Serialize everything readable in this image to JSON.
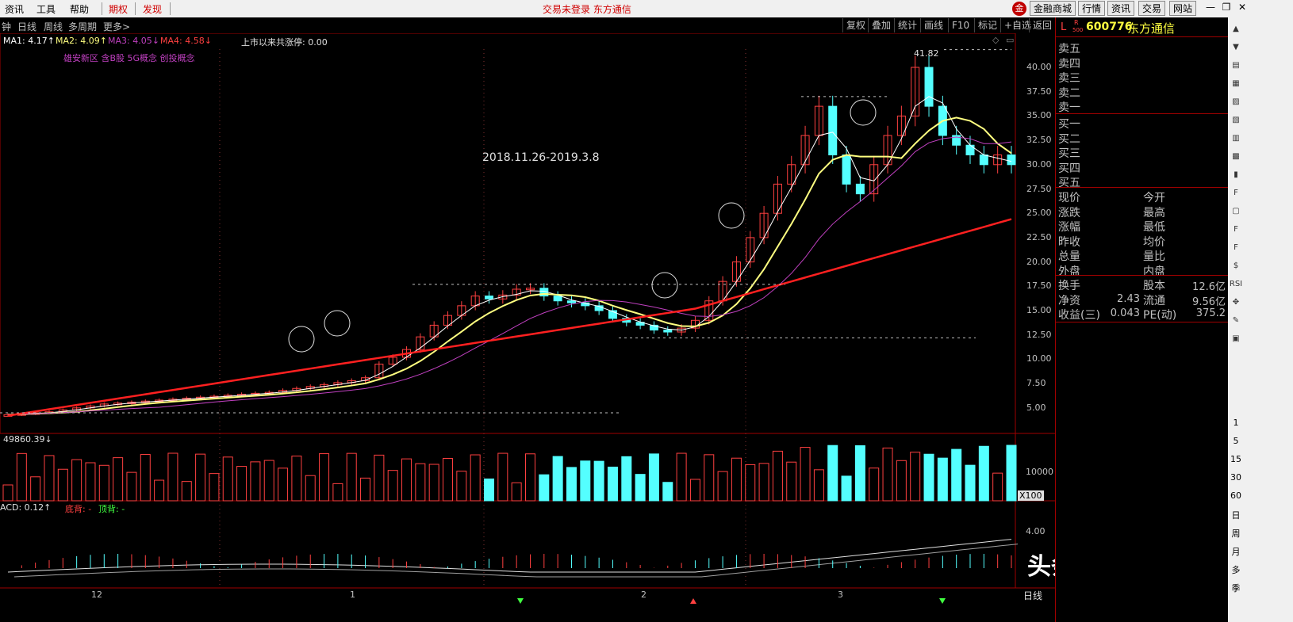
{
  "menu": {
    "items": [
      "资讯",
      "工具",
      "帮助"
    ],
    "red_items": [
      "期权",
      "发现"
    ],
    "status_text": "交易未登录  东方通信",
    "right_buttons": [
      "金融商城",
      "行情",
      "资讯",
      "交易",
      "网站"
    ]
  },
  "periods": [
    "钟",
    "日线",
    "周线",
    "多周期",
    "更多>"
  ],
  "tools": [
    "复权",
    "叠加",
    "统计",
    "画线",
    "F10",
    "标记",
    "+自选",
    "返回"
  ],
  "ma": {
    "ma1": "MA1: 4.17↑",
    "ma2": "MA2: 4.09↑",
    "ma3": "MA3: 4.05↓",
    "ma4": "MA4: 4.58↓",
    "limit_up": "上市以来共涨停: 0.00",
    "concepts": "雄安新区 含B股 5G概念 创投概念"
  },
  "annotation": {
    "date_range": "2018.11.26-2019.3.8",
    "high_label": "41.82"
  },
  "price_axis": [
    "40.00",
    "37.50",
    "35.00",
    "32.50",
    "30.00",
    "27.50",
    "25.00",
    "22.50",
    "20.00",
    "17.50",
    "15.00",
    "12.50",
    "10.00",
    "7.50",
    "5.00"
  ],
  "volume": {
    "label": "49860.39↓",
    "axis": "10000",
    "unit": "X100"
  },
  "macd": {
    "label": "ACD: 0.12↑",
    "bottom": "底背: -",
    "top": "顶背: -",
    "axis": "4.00"
  },
  "time_axis": [
    "12",
    "1",
    "2",
    "3"
  ],
  "period_label": "日线",
  "stock": {
    "prefix": "L",
    "code": "600776",
    "name": "东方通信",
    "badge": "R",
    "badge_sub": "500"
  },
  "quote": {
    "sells": [
      "卖五",
      "卖四",
      "卖三",
      "卖二",
      "卖一"
    ],
    "buys": [
      "买一",
      "买二",
      "买三",
      "买四",
      "买五"
    ],
    "left_labels": [
      "现价",
      "涨跌",
      "涨幅",
      "昨收",
      "总量",
      "外盘"
    ],
    "right_labels": [
      "今开",
      "最高",
      "最低",
      "均价",
      "量比",
      "内盘"
    ],
    "stats": [
      {
        "l": "换手",
        "lv": "",
        "r": "股本",
        "rv": "12.6亿"
      },
      {
        "l": "净资",
        "lv": "2.43",
        "r": "流通",
        "rv": "9.56亿"
      },
      {
        "l": "收益(三)",
        "lv": "0.043",
        "r": "PE(动)",
        "rv": "375.2"
      }
    ]
  },
  "side_periods": [
    "1",
    "5",
    "15",
    "30",
    "60",
    "日",
    "周",
    "月",
    "多",
    "季"
  ],
  "watermark": "头条 @金小斗",
  "colors": {
    "up": "#ff4040",
    "down": "#54ffff",
    "ma_white": "#ffffff",
    "ma_yellow": "#ffff80",
    "ma_purple": "#c040c0",
    "ma_red": "#ff2020"
  }
}
